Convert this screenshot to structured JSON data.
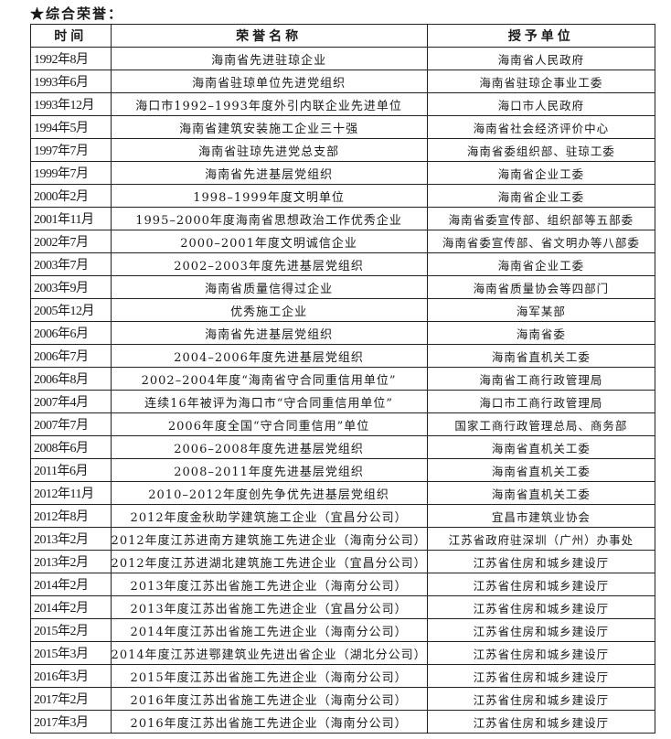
{
  "section_title": "★综合荣誉：",
  "table": {
    "headers": [
      "时间",
      "荣誉名称",
      "授予单位"
    ],
    "rows": [
      [
        "1992年8月",
        "海南省先进驻琼企业",
        "海南省人民政府"
      ],
      [
        "1993年6月",
        "海南省驻琼单位先进党组织",
        "海南省驻琼企事业工委"
      ],
      [
        "1993年12月",
        "海口市1992–1993年度外引内联企业先进单位",
        "海口市人民政府"
      ],
      [
        "1994年5月",
        "海南省建筑安装施工企业三十强",
        "海南省社会经济评价中心"
      ],
      [
        "1997年7月",
        "海南省驻琼先进党总支部",
        "海南省委组织部、驻琼工委"
      ],
      [
        "1999年7月",
        "海南省先进基层党组织",
        "海南省企业工委"
      ],
      [
        "2000年2月",
        "1998–1999年度文明单位",
        "海南省企业工委"
      ],
      [
        "2001年11月",
        "1995–2000年度海南省思想政治工作优秀企业",
        "海南省委宣传部、组织部等五部委"
      ],
      [
        "2002年7月",
        "2000–2001年度文明诚信企业",
        "海南省委宣传部、省文明办等八部委"
      ],
      [
        "2003年7月",
        "2002–2003年度先进基层党组织",
        "海南省企业工委"
      ],
      [
        "2003年9月",
        "海南省质量信得过企业",
        "海南省质量协会等四部门"
      ],
      [
        "2005年12月",
        "优秀施工企业",
        "海军某部"
      ],
      [
        "2006年6月",
        "海南省先进基层党组织",
        "海南省委"
      ],
      [
        "2006年7月",
        "2004–2006年度先进基层党组织",
        "海南省直机关工委"
      ],
      [
        "2006年8月",
        "2002–2004年度“海南省守合同重信用单位”",
        "海南省工商行政管理局"
      ],
      [
        "2007年4月",
        "连续16年被评为海口市“守合同重信用单位”",
        "海口市工商行政管理局"
      ],
      [
        "2007年7月",
        "2006年度全国“守合同重信用”单位",
        "国家工商行政管理总局、商务部"
      ],
      [
        "2008年6月",
        "2006–2008年度先进基层党组织",
        "海南省直机关工委"
      ],
      [
        "2011年6月",
        "2008–2011年度先进基层党组织",
        "海南省直机关工委"
      ],
      [
        "2012年11月",
        "2010–2012年度创先争优先进基层党组织",
        "海南省直机关工委"
      ],
      [
        "2012年8月",
        "2012年度金秋助学建筑施工企业（宜昌分公司）",
        "宜昌市建筑业协会"
      ],
      [
        "2013年2月",
        "2012年度江苏进南方建筑施工先进企业（海南分公司）",
        "江苏省政府驻深圳（广州）办事处"
      ],
      [
        "2013年2月",
        "2012年度江苏进湖北建筑施工先进企业（宜昌分公司）",
        "江苏省住房和城乡建设厅"
      ],
      [
        "2014年2月",
        "2013年度江苏出省施工先进企业（海南分公司）",
        "江苏省住房和城乡建设厅"
      ],
      [
        "2014年2月",
        "2013年度江苏出省施工先进企业（宜昌分公司）",
        "江苏省住房和城乡建设厅"
      ],
      [
        "2015年2月",
        "2014年度江苏出省施工先进企业（海南分公司）",
        "江苏省住房和城乡建设厅"
      ],
      [
        "2015年3月",
        "2014年度江苏进鄂建筑业先进出省企业（湖北分公司）",
        "江苏省住房和城乡建设厅"
      ],
      [
        "2016年3月",
        "2015年度江苏出省施工先进企业（海南分公司）",
        "江苏省住房和城乡建设厅"
      ],
      [
        "2017年2月",
        "2016年度江苏出省施工先进企业（海南分公司）",
        "江苏省住房和城乡建设厅"
      ],
      [
        "2017年3月",
        "2016年度江苏出省施工先进企业（海南分公司）",
        "江苏省住房和城乡建设厅"
      ]
    ]
  }
}
